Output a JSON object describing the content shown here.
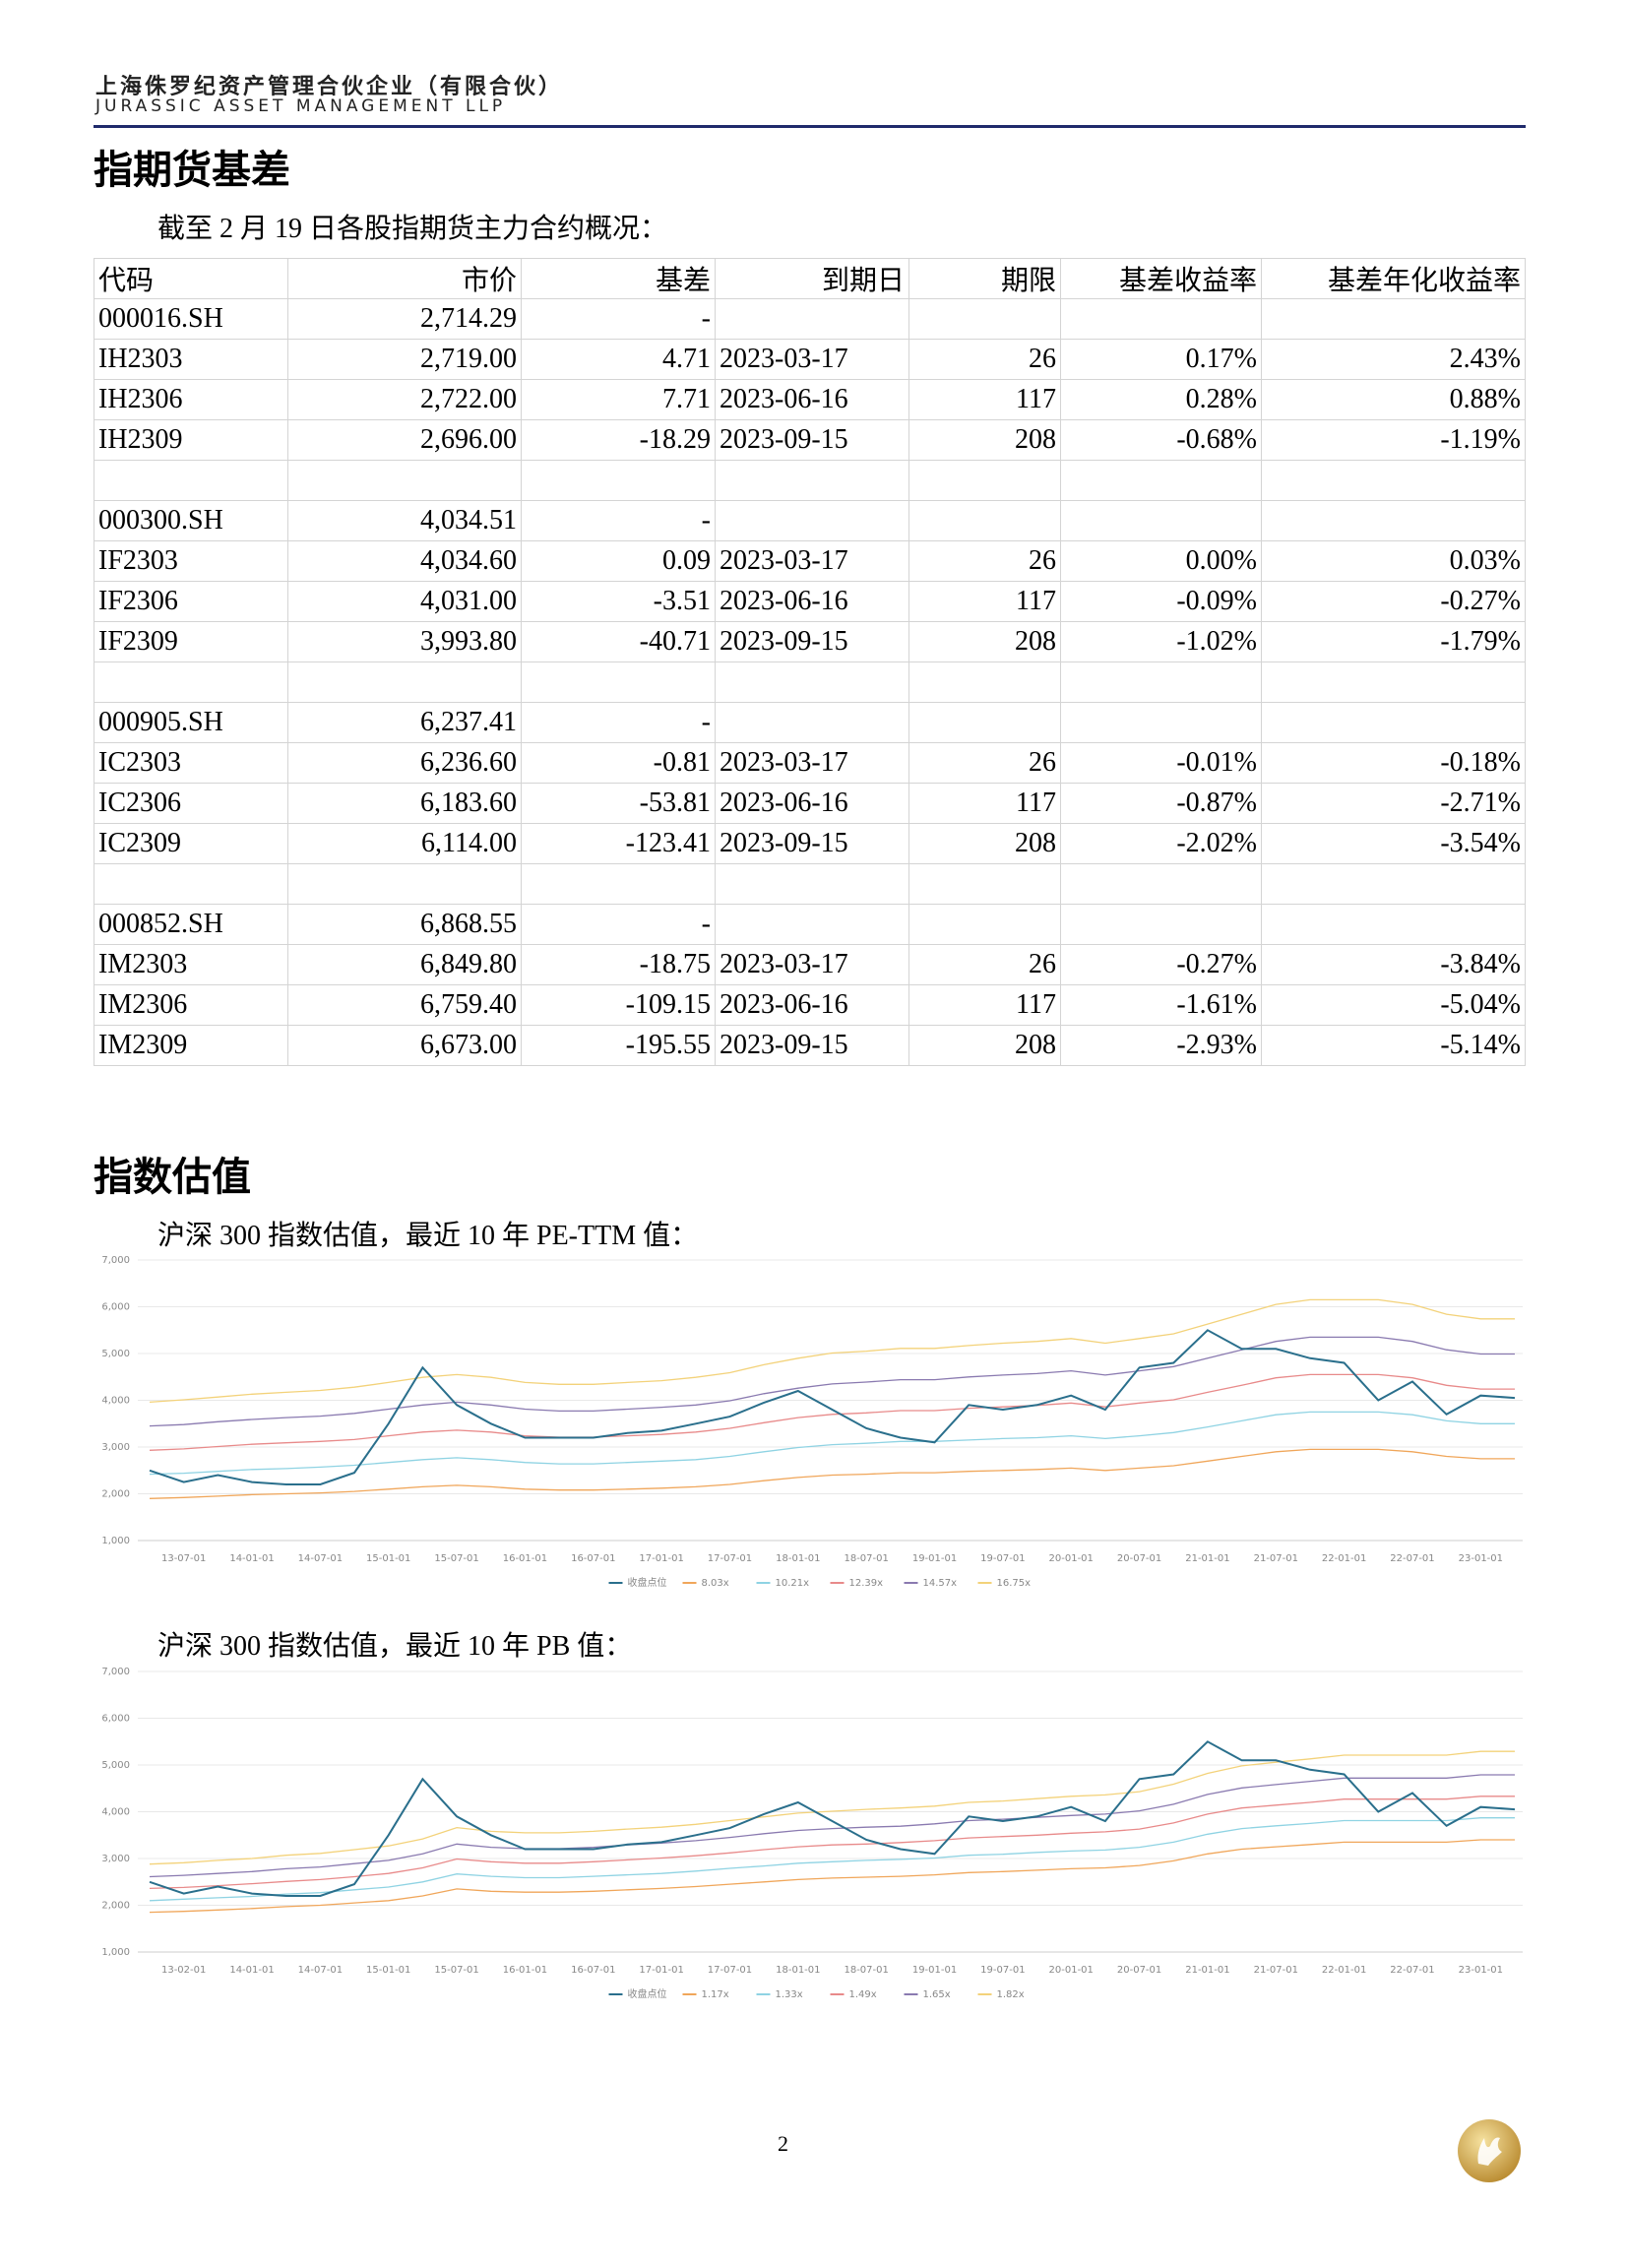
{
  "header": {
    "company_cn": "上海侏罗纪资产管理合伙企业（有限合伙）",
    "company_en": "JURASSIC ASSET MANAGEMENT LLP"
  },
  "section1": {
    "title": "指期货基差",
    "intro": "截至 2 月 19 日各股指期货主力合约概况："
  },
  "table": {
    "header": [
      "代码",
      "市价",
      "基差",
      "到期日",
      "期限",
      "基差收益率",
      "基差年化收益率"
    ],
    "groups": [
      {
        "rows": [
          [
            "000016.SH",
            "2,714.29",
            "-"
          ],
          [
            "IH2303",
            "2,719.00",
            "4.71",
            "2023-03-17",
            "26",
            "0.17%",
            "2.43%"
          ],
          [
            "IH2306",
            "2,722.00",
            "7.71",
            "2023-06-16",
            "117",
            "0.28%",
            "0.88%"
          ],
          [
            "IH2309",
            "2,696.00",
            "-18.29",
            "2023-09-15",
            "208",
            "-0.68%",
            "-1.19%"
          ]
        ]
      },
      {
        "rows": [
          [
            "000300.SH",
            "4,034.51",
            "-"
          ],
          [
            "IF2303",
            "4,034.60",
            "0.09",
            "2023-03-17",
            "26",
            "0.00%",
            "0.03%"
          ],
          [
            "IF2306",
            "4,031.00",
            "-3.51",
            "2023-06-16",
            "117",
            "-0.09%",
            "-0.27%"
          ],
          [
            "IF2309",
            "3,993.80",
            "-40.71",
            "2023-09-15",
            "208",
            "-1.02%",
            "-1.79%"
          ]
        ]
      },
      {
        "rows": [
          [
            "000905.SH",
            "6,237.41",
            "-"
          ],
          [
            "IC2303",
            "6,236.60",
            "-0.81",
            "2023-03-17",
            "26",
            "-0.01%",
            "-0.18%"
          ],
          [
            "IC2306",
            "6,183.60",
            "-53.81",
            "2023-06-16",
            "117",
            "-0.87%",
            "-2.71%"
          ],
          [
            "IC2309",
            "6,114.00",
            "-123.41",
            "2023-09-15",
            "208",
            "-2.02%",
            "-3.54%"
          ]
        ]
      },
      {
        "rows": [
          [
            "000852.SH",
            "6,868.55",
            "-"
          ],
          [
            "IM2303",
            "6,849.80",
            "-18.75",
            "2023-03-17",
            "26",
            "-0.27%",
            "-3.84%"
          ],
          [
            "IM2306",
            "6,759.40",
            "-109.15",
            "2023-06-16",
            "117",
            "-1.61%",
            "-5.04%"
          ],
          [
            "IM2309",
            "6,673.00",
            "-195.55",
            "2023-09-15",
            "208",
            "-2.93%",
            "-5.14%"
          ]
        ]
      }
    ]
  },
  "section2": {
    "title": "指数估值",
    "intro1": "沪深 300 指数估值，最近 10 年 PE-TTM 值：",
    "intro2": "沪深 300 指数估值，最近 10 年 PB 值："
  },
  "chart_data": [
    {
      "type": "line",
      "categories": [
        null,
        "13-07-01",
        null,
        "14-01-01",
        null,
        "14-07-01",
        null,
        "15-01-01",
        null,
        "15-07-01",
        null,
        "16-01-01",
        null,
        "16-07-01",
        null,
        "17-01-01",
        null,
        "17-07-01",
        null,
        "18-01-01",
        null,
        "18-07-01",
        null,
        "19-01-01",
        null,
        "19-07-01",
        null,
        "20-01-01",
        null,
        "20-07-01",
        null,
        "21-01-01",
        null,
        "21-07-01",
        null,
        "22-01-01",
        null,
        "22-07-01",
        null,
        "23-01-01",
        null
      ],
      "ylim": [
        1000,
        7000
      ],
      "yticks": [
        {
          "value": 1000,
          "label": "1,000"
        },
        {
          "value": 2000,
          "label": "2,000"
        },
        {
          "value": 3000,
          "label": "3,000"
        },
        {
          "value": 4000,
          "label": "4,000"
        },
        {
          "value": 5000,
          "label": "5,000"
        },
        {
          "value": 6000,
          "label": "6,000"
        },
        {
          "value": 7000,
          "label": "7,000"
        }
      ],
      "grid": true,
      "legend": "bottom",
      "series": [
        {
          "name": "收盘点位",
          "color": "#2a6f8c",
          "values": [
            2500,
            2250,
            2400,
            2250,
            2200,
            2200,
            2450,
            3500,
            4700,
            3900,
            3500,
            3200,
            3200,
            3200,
            3300,
            3350,
            3500,
            3650,
            3950,
            4200,
            3800,
            3400,
            3200,
            3100,
            3900,
            3800,
            3900,
            4100,
            3800,
            4700,
            4800,
            5500,
            5100,
            5100,
            4900,
            4800,
            4000,
            4400,
            3700,
            4100,
            4050
          ]
        },
        {
          "name": "8.03x",
          "color": "#f0a65a",
          "values": [
            1900,
            1920,
            1950,
            1980,
            2000,
            2020,
            2050,
            2100,
            2150,
            2180,
            2150,
            2100,
            2080,
            2080,
            2100,
            2120,
            2150,
            2200,
            2280,
            2350,
            2400,
            2420,
            2450,
            2450,
            2480,
            2500,
            2520,
            2550,
            2500,
            2550,
            2600,
            2700,
            2800,
            2900,
            2950,
            2950,
            2950,
            2900,
            2800,
            2750,
            2750
          ]
        },
        {
          "name": "10.21x",
          "color": "#8fd3e3",
          "values": [
            2420,
            2440,
            2480,
            2520,
            2540,
            2570,
            2610,
            2670,
            2730,
            2770,
            2730,
            2670,
            2640,
            2640,
            2670,
            2700,
            2730,
            2800,
            2900,
            2990,
            3050,
            3080,
            3120,
            3120,
            3150,
            3180,
            3200,
            3240,
            3180,
            3240,
            3310,
            3430,
            3560,
            3690,
            3750,
            3750,
            3750,
            3690,
            3560,
            3500,
            3500
          ]
        },
        {
          "name": "12.39x",
          "color": "#e88a8a",
          "values": [
            2930,
            2960,
            3010,
            3060,
            3090,
            3120,
            3160,
            3240,
            3320,
            3360,
            3320,
            3240,
            3210,
            3210,
            3240,
            3270,
            3320,
            3400,
            3520,
            3630,
            3700,
            3730,
            3780,
            3780,
            3830,
            3860,
            3890,
            3940,
            3860,
            3940,
            4010,
            4170,
            4320,
            4480,
            4550,
            4550,
            4550,
            4480,
            4320,
            4240,
            4240
          ]
        },
        {
          "name": "14.57x",
          "color": "#8a7ab0",
          "values": [
            3450,
            3480,
            3540,
            3590,
            3630,
            3660,
            3720,
            3810,
            3900,
            3960,
            3900,
            3810,
            3770,
            3770,
            3810,
            3850,
            3900,
            3990,
            4140,
            4260,
            4350,
            4390,
            4440,
            4440,
            4500,
            4540,
            4570,
            4630,
            4540,
            4630,
            4720,
            4900,
            5080,
            5260,
            5350,
            5350,
            5350,
            5260,
            5080,
            4990,
            4990
          ]
        },
        {
          "name": "16.75x",
          "color": "#f3d27a",
          "values": [
            3960,
            4010,
            4070,
            4130,
            4170,
            4210,
            4280,
            4380,
            4490,
            4550,
            4490,
            4380,
            4340,
            4340,
            4380,
            4420,
            4490,
            4590,
            4760,
            4900,
            5010,
            5050,
            5110,
            5110,
            5170,
            5220,
            5260,
            5320,
            5220,
            5320,
            5420,
            5630,
            5840,
            6050,
            6150,
            6150,
            6150,
            6050,
            5840,
            5740,
            5740
          ]
        }
      ]
    },
    {
      "type": "line",
      "categories": [
        null,
        "13-02-01",
        null,
        "14-01-01",
        null,
        "14-07-01",
        null,
        "15-01-01",
        null,
        "15-07-01",
        null,
        "16-01-01",
        null,
        "16-07-01",
        null,
        "17-01-01",
        null,
        "17-07-01",
        null,
        "18-01-01",
        null,
        "18-07-01",
        null,
        "19-01-01",
        null,
        "19-07-01",
        null,
        "20-01-01",
        null,
        "20-07-01",
        null,
        "21-01-01",
        null,
        "21-07-01",
        null,
        "22-01-01",
        null,
        "22-07-01",
        null,
        "23-01-01",
        null
      ],
      "ylim": [
        1000,
        7000
      ],
      "yticks": [
        {
          "value": 1000,
          "label": "1,000"
        },
        {
          "value": 2000,
          "label": "2,000"
        },
        {
          "value": 3000,
          "label": "3,000"
        },
        {
          "value": 4000,
          "label": "4,000"
        },
        {
          "value": 5000,
          "label": "5,000"
        },
        {
          "value": 6000,
          "label": "6,000"
        },
        {
          "value": 7000,
          "label": "7,000"
        }
      ],
      "grid": true,
      "legend": "bottom",
      "series": [
        {
          "name": "收盘点位",
          "color": "#2a6f8c",
          "values": [
            2500,
            2250,
            2400,
            2250,
            2200,
            2200,
            2450,
            3500,
            4700,
            3900,
            3500,
            3200,
            3200,
            3200,
            3300,
            3350,
            3500,
            3650,
            3950,
            4200,
            3800,
            3400,
            3200,
            3100,
            3900,
            3800,
            3900,
            4100,
            3800,
            4700,
            4800,
            5500,
            5100,
            5100,
            4900,
            4800,
            4000,
            4400,
            3700,
            4100,
            4050
          ]
        },
        {
          "name": "1.17x",
          "color": "#f0a65a",
          "values": [
            1850,
            1870,
            1900,
            1930,
            1970,
            2000,
            2050,
            2100,
            2200,
            2350,
            2300,
            2280,
            2280,
            2300,
            2330,
            2360,
            2400,
            2450,
            2500,
            2550,
            2580,
            2600,
            2620,
            2650,
            2700,
            2720,
            2750,
            2780,
            2800,
            2850,
            2950,
            3100,
            3200,
            3250,
            3300,
            3350,
            3350,
            3350,
            3350,
            3400,
            3400
          ]
        },
        {
          "name": "1.33x",
          "color": "#8fd3e3",
          "values": [
            2100,
            2130,
            2160,
            2190,
            2240,
            2270,
            2330,
            2390,
            2500,
            2670,
            2620,
            2590,
            2590,
            2620,
            2650,
            2680,
            2730,
            2790,
            2840,
            2900,
            2930,
            2960,
            2980,
            3010,
            3070,
            3090,
            3130,
            3160,
            3180,
            3240,
            3350,
            3520,
            3640,
            3700,
            3750,
            3810,
            3810,
            3810,
            3810,
            3870,
            3870
          ]
        },
        {
          "name": "1.49x",
          "color": "#e88a8a",
          "values": [
            2360,
            2380,
            2420,
            2460,
            2510,
            2550,
            2610,
            2680,
            2800,
            2990,
            2930,
            2900,
            2900,
            2930,
            2970,
            3010,
            3060,
            3120,
            3190,
            3250,
            3290,
            3310,
            3340,
            3380,
            3440,
            3470,
            3500,
            3540,
            3570,
            3630,
            3760,
            3950,
            4080,
            4140,
            4200,
            4270,
            4270,
            4270,
            4270,
            4330,
            4330
          ]
        },
        {
          "name": "1.65x",
          "color": "#8a7ab0",
          "values": [
            2610,
            2640,
            2680,
            2720,
            2780,
            2820,
            2890,
            2960,
            3100,
            3310,
            3240,
            3210,
            3210,
            3240,
            3290,
            3330,
            3380,
            3450,
            3530,
            3600,
            3640,
            3670,
            3690,
            3740,
            3810,
            3840,
            3880,
            3920,
            3950,
            4020,
            4160,
            4370,
            4510,
            4580,
            4650,
            4720,
            4720,
            4720,
            4720,
            4790,
            4790
          ]
        },
        {
          "name": "1.82x",
          "color": "#f3d27a",
          "values": [
            2880,
            2910,
            2960,
            3000,
            3070,
            3110,
            3190,
            3270,
            3420,
            3660,
            3580,
            3550,
            3550,
            3580,
            3630,
            3670,
            3730,
            3810,
            3890,
            3970,
            4010,
            4050,
            4080,
            4120,
            4200,
            4230,
            4280,
            4330,
            4360,
            4430,
            4590,
            4820,
            4980,
            5060,
            5130,
            5210,
            5210,
            5210,
            5210,
            5290,
            5290
          ]
        }
      ]
    }
  ],
  "page_number": "2"
}
